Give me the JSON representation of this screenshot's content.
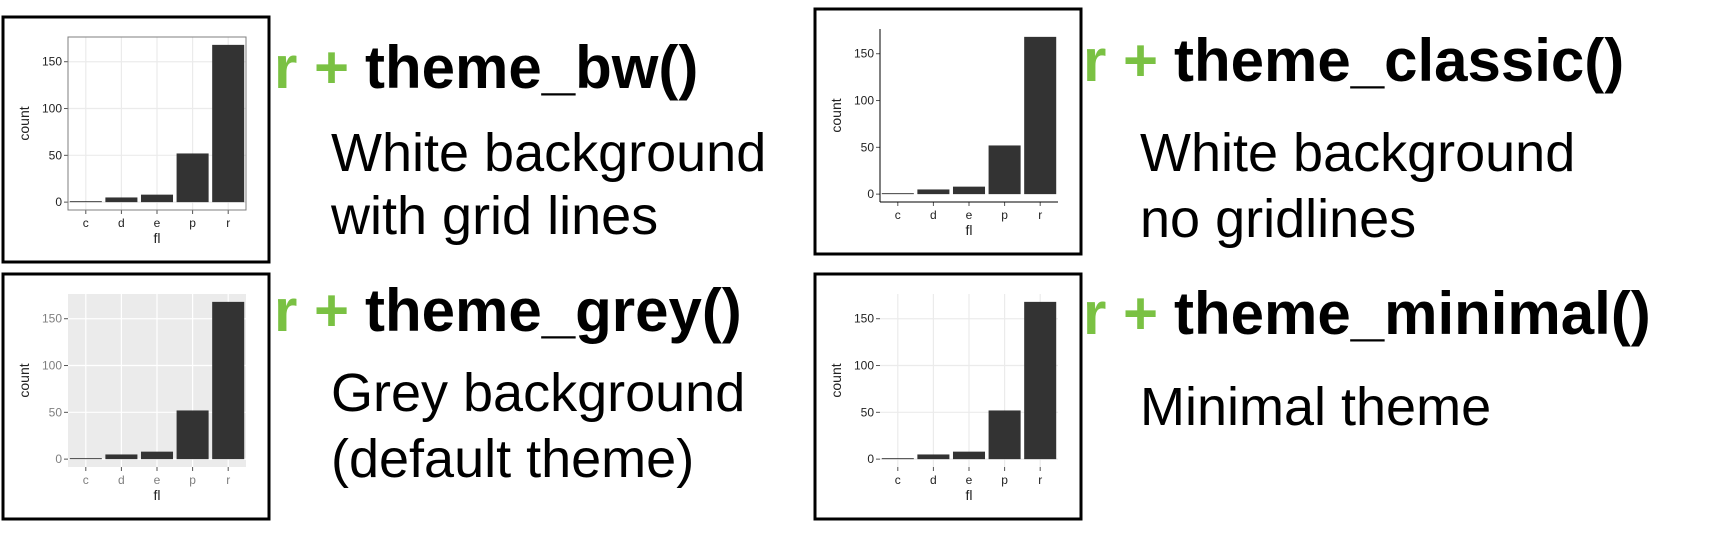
{
  "chart_data": [
    {
      "type": "bar",
      "categories": [
        "c",
        "d",
        "e",
        "p",
        "r"
      ],
      "values": [
        1,
        5,
        8,
        52,
        168
      ],
      "color": "#333333",
      "xlabel": "fl",
      "ylabel": "count",
      "ylim": [
        -8.4,
        176.4
      ],
      "yticks": [
        0,
        50,
        100,
        150
      ],
      "grid": true,
      "grid_color": "#ebebeb",
      "background": "#ffffff",
      "border": true,
      "axis_lines": false
    },
    {
      "type": "bar",
      "categories": [
        "c",
        "d",
        "e",
        "p",
        "r"
      ],
      "values": [
        1,
        5,
        8,
        52,
        168
      ],
      "color": "#333333",
      "xlabel": "fl",
      "ylabel": "count",
      "ylim": [
        -8.4,
        176.4
      ],
      "yticks": [
        0,
        50,
        100,
        150
      ],
      "grid": false,
      "grid_color": "#ebebeb",
      "background": "#ffffff",
      "border": false,
      "axis_lines": true
    },
    {
      "type": "bar",
      "categories": [
        "c",
        "d",
        "e",
        "p",
        "r"
      ],
      "values": [
        1,
        5,
        8,
        52,
        168
      ],
      "color": "#333333",
      "xlabel": "fl",
      "ylabel": "count",
      "ylim": [
        -8.4,
        176.4
      ],
      "yticks": [
        0,
        50,
        100,
        150
      ],
      "grid": true,
      "grid_color": "#ffffff",
      "background": "#ebebeb",
      "border": false,
      "axis_lines": false
    },
    {
      "type": "bar",
      "categories": [
        "c",
        "d",
        "e",
        "p",
        "r"
      ],
      "values": [
        1,
        5,
        8,
        52,
        168
      ],
      "color": "#333333",
      "xlabel": "fl",
      "ylabel": "count",
      "ylim": [
        -8.4,
        176.4
      ],
      "yticks": [
        0,
        50,
        100,
        150
      ],
      "grid": true,
      "grid_color": "#ebebeb",
      "background": "#ffffff",
      "border": false,
      "axis_lines": false
    }
  ],
  "labels": [
    {
      "prefix": "r +",
      "code": "theme_bw()",
      "lines": [
        "White background",
        "with grid lines"
      ]
    },
    {
      "prefix": "r +",
      "code": "theme_classic()",
      "lines": [
        "White background",
        "no gridlines"
      ]
    },
    {
      "prefix": "r +",
      "code": "theme_grey()",
      "lines": [
        "Grey background",
        "(default theme)"
      ]
    },
    {
      "prefix": "r +",
      "code": "theme_minimal()",
      "lines": [
        "Minimal theme"
      ]
    }
  ]
}
